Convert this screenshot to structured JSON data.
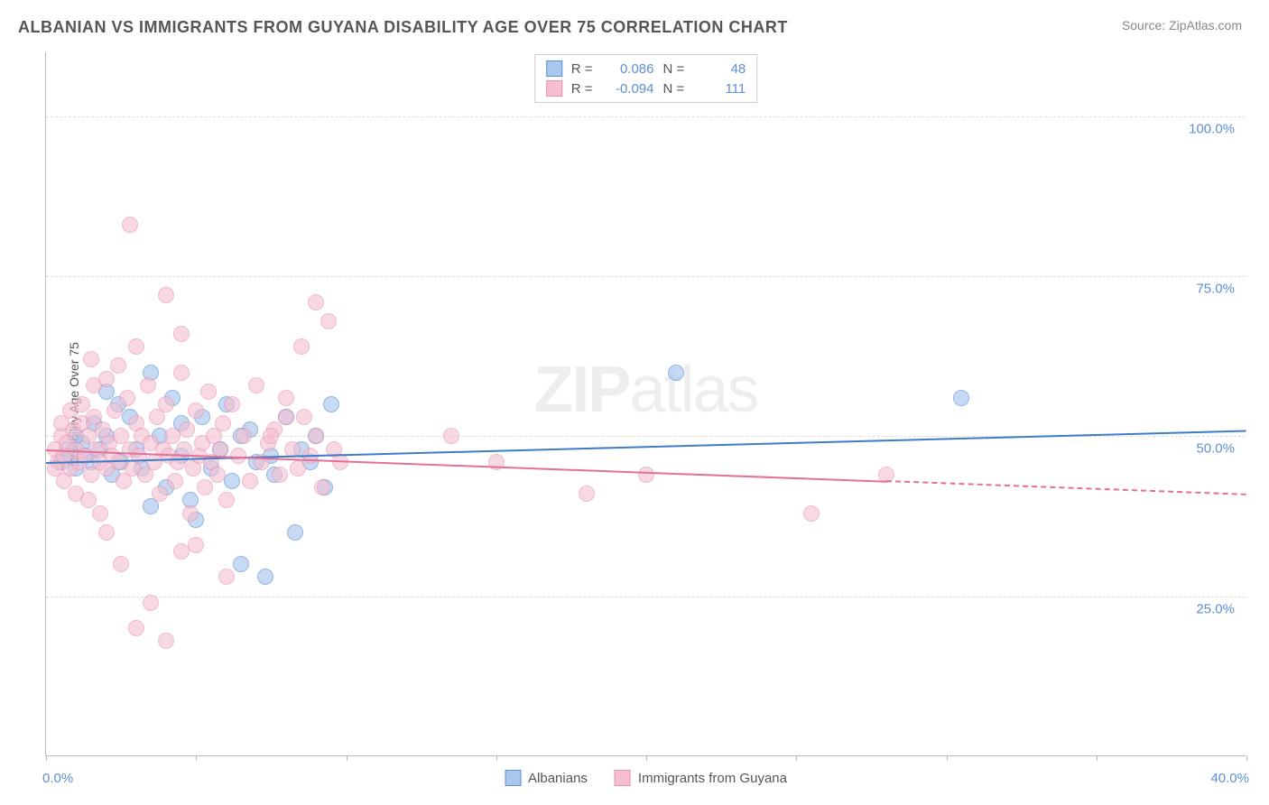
{
  "title": "ALBANIAN VS IMMIGRANTS FROM GUYANA DISABILITY AGE OVER 75 CORRELATION CHART",
  "source": "Source: ZipAtlas.com",
  "watermark": "ZIPatlas",
  "ylabel": "Disability Age Over 75",
  "chart": {
    "type": "scatter",
    "xlim": [
      0,
      40
    ],
    "ylim": [
      0,
      110
    ],
    "xticks": [
      0,
      5,
      10,
      15,
      20,
      25,
      30,
      35,
      40
    ],
    "yticks": [
      25,
      50,
      75,
      100
    ],
    "xmin_label": "0.0%",
    "xmax_label": "40.0%",
    "ytick_labels": [
      "25.0%",
      "50.0%",
      "75.0%",
      "100.0%"
    ],
    "background_color": "#ffffff",
    "grid_color": "#dddddd",
    "point_radius": 9,
    "series": [
      {
        "name": "Albanians",
        "fill": "#a9c7ed",
        "stroke": "#5b8fd6",
        "opacity": 0.65,
        "R": "0.086",
        "N": "48",
        "trend": {
          "y_at_x0": 46,
          "y_at_x40": 51,
          "x_solid_end": 40,
          "color": "#3d7cc9"
        },
        "points": [
          [
            0.5,
            46
          ],
          [
            0.7,
            48
          ],
          [
            0.8,
            47
          ],
          [
            1.0,
            45
          ],
          [
            1.2,
            49
          ],
          [
            1.3,
            47
          ],
          [
            1.5,
            46
          ],
          [
            1.6,
            52
          ],
          [
            1.8,
            48
          ],
          [
            2.0,
            50
          ],
          [
            2.2,
            44
          ],
          [
            2.4,
            55
          ],
          [
            2.5,
            46
          ],
          [
            2.8,
            53
          ],
          [
            3.0,
            48
          ],
          [
            3.2,
            45
          ],
          [
            3.5,
            39
          ],
          [
            3.8,
            50
          ],
          [
            4.0,
            42
          ],
          [
            4.2,
            56
          ],
          [
            4.5,
            47
          ],
          [
            4.8,
            40
          ],
          [
            5.0,
            37
          ],
          [
            5.2,
            53
          ],
          [
            5.5,
            45
          ],
          [
            5.8,
            48
          ],
          [
            6.0,
            55
          ],
          [
            6.2,
            43
          ],
          [
            6.5,
            30
          ],
          [
            6.8,
            51
          ],
          [
            7.0,
            46
          ],
          [
            7.3,
            28
          ],
          [
            7.6,
            44
          ],
          [
            8.0,
            53
          ],
          [
            8.3,
            35
          ],
          [
            8.5,
            48
          ],
          [
            8.8,
            46
          ],
          [
            9.0,
            50
          ],
          [
            9.3,
            42
          ],
          [
            9.5,
            55
          ],
          [
            2.0,
            57
          ],
          [
            3.5,
            60
          ],
          [
            4.5,
            52
          ],
          [
            6.5,
            50
          ],
          [
            7.5,
            47
          ],
          [
            21.0,
            60
          ],
          [
            30.5,
            56
          ],
          [
            1.0,
            50
          ]
        ]
      },
      {
        "name": "Immigrants from Guyana",
        "fill": "#f5bfd0",
        "stroke": "#e98fb0",
        "opacity": 0.6,
        "R": "-0.094",
        "N": "111",
        "trend": {
          "y_at_x0": 48,
          "y_at_x40": 41,
          "x_solid_end": 28,
          "color": "#e46f99"
        },
        "points": [
          [
            0.3,
            48
          ],
          [
            0.4,
            46
          ],
          [
            0.5,
            50
          ],
          [
            0.6,
            47
          ],
          [
            0.7,
            49
          ],
          [
            0.8,
            45
          ],
          [
            0.9,
            51
          ],
          [
            1.0,
            48
          ],
          [
            1.1,
            46
          ],
          [
            1.2,
            52
          ],
          [
            1.3,
            47
          ],
          [
            1.4,
            50
          ],
          [
            1.5,
            44
          ],
          [
            1.6,
            53
          ],
          [
            1.7,
            48
          ],
          [
            1.8,
            46
          ],
          [
            1.9,
            51
          ],
          [
            2.0,
            45
          ],
          [
            2.1,
            49
          ],
          [
            2.2,
            47
          ],
          [
            2.3,
            54
          ],
          [
            2.4,
            46
          ],
          [
            2.5,
            50
          ],
          [
            2.6,
            43
          ],
          [
            2.7,
            56
          ],
          [
            2.8,
            48
          ],
          [
            2.9,
            45
          ],
          [
            3.0,
            52
          ],
          [
            3.1,
            47
          ],
          [
            3.2,
            50
          ],
          [
            3.3,
            44
          ],
          [
            3.4,
            58
          ],
          [
            3.5,
            49
          ],
          [
            3.6,
            46
          ],
          [
            3.7,
            53
          ],
          [
            3.8,
            41
          ],
          [
            3.9,
            48
          ],
          [
            4.0,
            55
          ],
          [
            4.1,
            47
          ],
          [
            4.2,
            50
          ],
          [
            4.3,
            43
          ],
          [
            4.4,
            46
          ],
          [
            4.5,
            60
          ],
          [
            4.6,
            48
          ],
          [
            4.7,
            51
          ],
          [
            4.8,
            38
          ],
          [
            4.9,
            45
          ],
          [
            5.0,
            54
          ],
          [
            5.1,
            47
          ],
          [
            5.2,
            49
          ],
          [
            5.3,
            42
          ],
          [
            5.4,
            57
          ],
          [
            5.5,
            46
          ],
          [
            5.6,
            50
          ],
          [
            5.7,
            44
          ],
          [
            5.8,
            48
          ],
          [
            5.9,
            52
          ],
          [
            6.0,
            40
          ],
          [
            6.2,
            55
          ],
          [
            6.4,
            47
          ],
          [
            6.6,
            50
          ],
          [
            6.8,
            43
          ],
          [
            7.0,
            58
          ],
          [
            7.2,
            46
          ],
          [
            7.4,
            49
          ],
          [
            7.6,
            51
          ],
          [
            7.8,
            44
          ],
          [
            8.0,
            56
          ],
          [
            8.2,
            48
          ],
          [
            8.4,
            45
          ],
          [
            8.6,
            53
          ],
          [
            8.8,
            47
          ],
          [
            9.0,
            50
          ],
          [
            9.2,
            42
          ],
          [
            9.4,
            68
          ],
          [
            9.6,
            48
          ],
          [
            9.8,
            46
          ],
          [
            2.8,
            83
          ],
          [
            4.0,
            72
          ],
          [
            4.5,
            66
          ],
          [
            1.5,
            62
          ],
          [
            3.0,
            64
          ],
          [
            2.5,
            30
          ],
          [
            3.5,
            24
          ],
          [
            3.0,
            20
          ],
          [
            4.0,
            18
          ],
          [
            2.0,
            35
          ],
          [
            5.0,
            33
          ],
          [
            6.0,
            28
          ],
          [
            4.5,
            32
          ],
          [
            7.5,
            50
          ],
          [
            8.0,
            53
          ],
          [
            9.0,
            71
          ],
          [
            8.5,
            64
          ],
          [
            13.5,
            50
          ],
          [
            15.0,
            46
          ],
          [
            18.0,
            41
          ],
          [
            20.0,
            44
          ],
          [
            25.5,
            38
          ],
          [
            28.0,
            44
          ],
          [
            0.5,
            52
          ],
          [
            0.8,
            54
          ],
          [
            1.2,
            55
          ],
          [
            1.6,
            58
          ],
          [
            2.0,
            59
          ],
          [
            2.4,
            61
          ],
          [
            0.3,
            45
          ],
          [
            0.6,
            43
          ],
          [
            1.0,
            41
          ],
          [
            1.4,
            40
          ],
          [
            1.8,
            38
          ]
        ]
      }
    ]
  },
  "legend_bottom": [
    {
      "label": "Albanians",
      "fill": "#a9c7ed",
      "stroke": "#5b8fd6"
    },
    {
      "label": "Immigrants from Guyana",
      "fill": "#f5bfd0",
      "stroke": "#e98fb0"
    }
  ]
}
